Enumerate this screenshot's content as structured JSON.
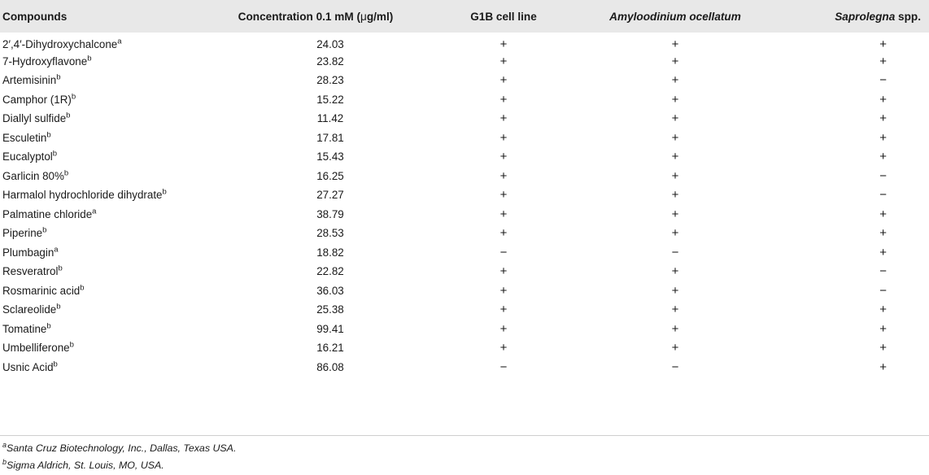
{
  "table": {
    "headers": [
      {
        "text": "Compounds"
      },
      {
        "text": "Concentration 0.1 mM (",
        "mu": "μ",
        "tail": "g/ml)"
      },
      {
        "text": "G1B cell line"
      },
      {
        "text": "Amyloodinium ocellatum"
      },
      {
        "text": "Saprolegna",
        "tail": " spp."
      }
    ],
    "rows": [
      {
        "compound": "2′,4′-Dihydroxychalcone",
        "note": "a",
        "concentration": "24.03",
        "g1b": "+",
        "amyloodinium": "+",
        "saprolegna": "+"
      },
      {
        "compound": "7-Hydroxyflavone",
        "note": "b",
        "concentration": "23.82",
        "g1b": "+",
        "amyloodinium": "+",
        "saprolegna": "+"
      },
      {
        "compound": "Artemisinin",
        "note": "b",
        "concentration": "28.23",
        "g1b": "+",
        "amyloodinium": "+",
        "saprolegna": "−"
      },
      {
        "compound": "Camphor (1R)",
        "note": "b",
        "concentration": "15.22",
        "g1b": "+",
        "amyloodinium": "+",
        "saprolegna": "+"
      },
      {
        "compound": "Diallyl sulfide",
        "note": "b",
        "concentration": "11.42",
        "g1b": "+",
        "amyloodinium": "+",
        "saprolegna": "+"
      },
      {
        "compound": "Esculetin",
        "note": "b",
        "concentration": "17.81",
        "g1b": "+",
        "amyloodinium": "+",
        "saprolegna": "+"
      },
      {
        "compound": "Eucalyptol",
        "note": "b",
        "concentration": "15.43",
        "g1b": "+",
        "amyloodinium": "+",
        "saprolegna": "+"
      },
      {
        "compound": "Garlicin 80%",
        "note": "b",
        "concentration": "16.25",
        "g1b": "+",
        "amyloodinium": "+",
        "saprolegna": "−"
      },
      {
        "compound": "Harmalol hydrochloride dihydrate",
        "note": "b",
        "concentration": "27.27",
        "g1b": "+",
        "amyloodinium": "+",
        "saprolegna": "−"
      },
      {
        "compound": "Palmatine chloride",
        "note": "a",
        "concentration": "38.79",
        "g1b": "+",
        "amyloodinium": "+",
        "saprolegna": "+"
      },
      {
        "compound": "Piperine",
        "note": "b",
        "concentration": "28.53",
        "g1b": "+",
        "amyloodinium": "+",
        "saprolegna": "+"
      },
      {
        "compound": "Plumbagin",
        "note": "a",
        "concentration": "18.82",
        "g1b": "−",
        "amyloodinium": "−",
        "saprolegna": "+"
      },
      {
        "compound": "Resveratrol",
        "note": "b",
        "concentration": "22.82",
        "g1b": "+",
        "amyloodinium": "+",
        "saprolegna": "−"
      },
      {
        "compound": "Rosmarinic acid",
        "note": "b",
        "concentration": "36.03",
        "g1b": "+",
        "amyloodinium": "+",
        "saprolegna": "−"
      },
      {
        "compound": "Sclareolide",
        "note": "b",
        "concentration": "25.38",
        "g1b": "+",
        "amyloodinium": "+",
        "saprolegna": "+"
      },
      {
        "compound": "Tomatine",
        "note": "b",
        "concentration": "99.41",
        "g1b": "+",
        "amyloodinium": "+",
        "saprolegna": "+"
      },
      {
        "compound": "Umbelliferone",
        "note": "b",
        "concentration": "16.21",
        "g1b": "+",
        "amyloodinium": "+",
        "saprolegna": "+"
      },
      {
        "compound": "Usnic Acid",
        "note": "b",
        "concentration": "86.08",
        "g1b": "−",
        "amyloodinium": "−",
        "saprolegna": "+"
      }
    ]
  },
  "footnotes": [
    {
      "mark": "a",
      "text": "Santa Cruz Biotechnology, Inc., Dallas, Texas USA."
    },
    {
      "mark": "b",
      "text": "Sigma Aldrich, St. Louis, MO, USA."
    }
  ],
  "colors": {
    "header_bg": "#e8e8e8",
    "text": "#1a1a1a",
    "rule": "#cfcfcf"
  }
}
